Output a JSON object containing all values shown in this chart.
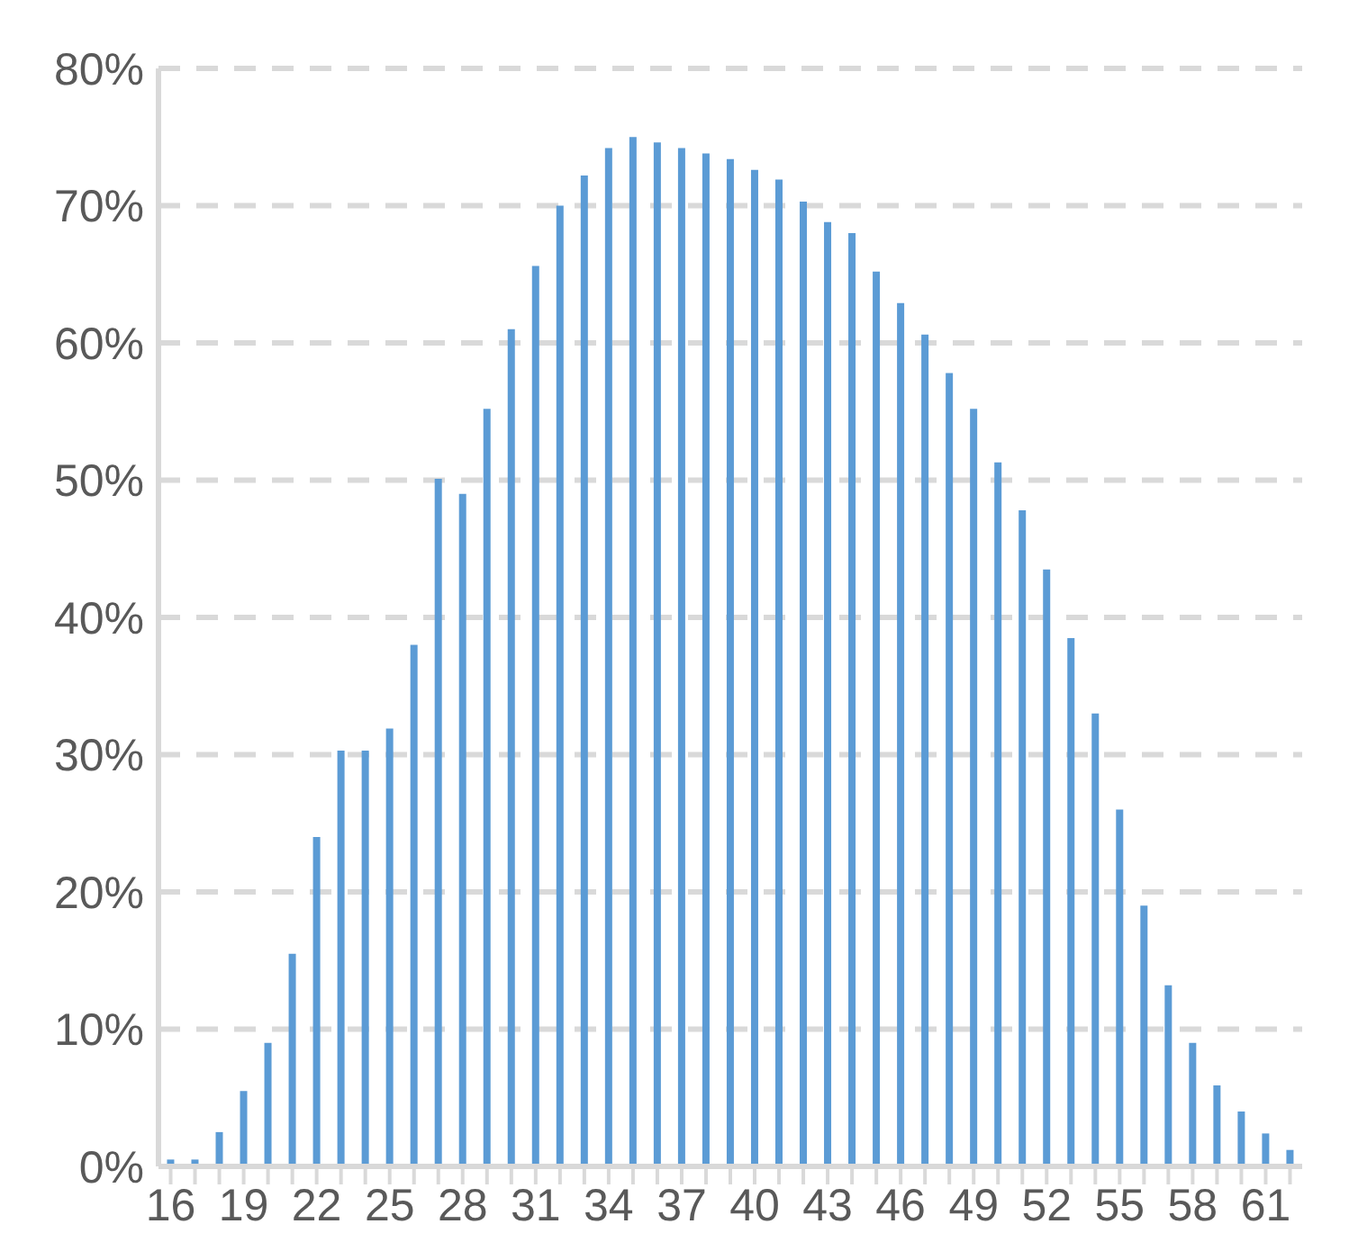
{
  "chart_data": {
    "type": "bar",
    "categories": [
      "16",
      null,
      null,
      "19",
      null,
      null,
      "22",
      null,
      null,
      "25",
      null,
      null,
      "28",
      null,
      null,
      "31",
      null,
      null,
      "34",
      null,
      null,
      "37",
      null,
      null,
      "40",
      null,
      null,
      "43",
      null,
      null,
      "46",
      null,
      null,
      "49",
      null,
      null,
      "52",
      null,
      null,
      "55",
      null,
      null,
      "58",
      null,
      null,
      "61",
      null
    ],
    "values": [
      0.5,
      0.5,
      2.5,
      5.5,
      9,
      15.5,
      24,
      30.3,
      30.3,
      31.9,
      38,
      50.1,
      49,
      55.2,
      61,
      65.6,
      70,
      72.2,
      74.2,
      75,
      74.6,
      74.2,
      73.8,
      73.4,
      72.6,
      71.9,
      70.3,
      68.8,
      68,
      65.2,
      62.9,
      60.6,
      57.8,
      55.2,
      51.3,
      47.8,
      43.5,
      38.5,
      33,
      26,
      19,
      13.2,
      9,
      5.9,
      4,
      2.4,
      1.2
    ],
    "color": "#5b9bd5",
    "ylim": [
      0,
      80
    ],
    "yticks": [
      {
        "value": 0,
        "label": "0%"
      },
      {
        "value": 10,
        "label": "10%"
      },
      {
        "value": 20,
        "label": "20%"
      },
      {
        "value": 30,
        "label": "30%"
      },
      {
        "value": 40,
        "label": "40%"
      },
      {
        "value": 50,
        "label": "50%"
      },
      {
        "value": 60,
        "label": "60%"
      },
      {
        "value": 70,
        "label": "70%"
      },
      {
        "value": 80,
        "label": "80%"
      }
    ],
    "grid": "y"
  }
}
